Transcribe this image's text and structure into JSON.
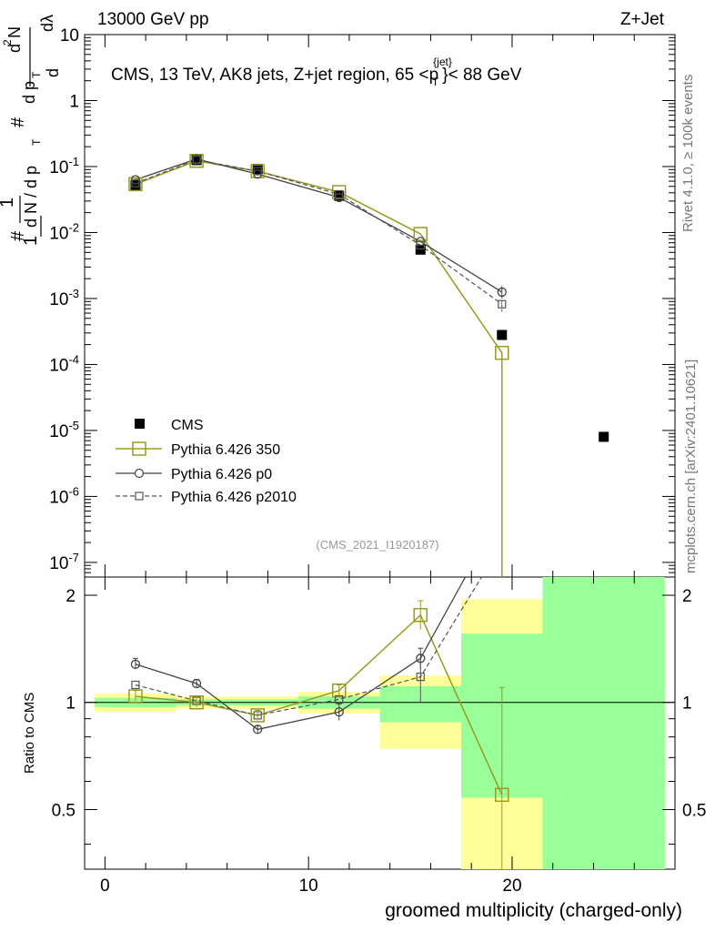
{
  "header": {
    "left": "13000 GeV pp",
    "right": "Z+Jet"
  },
  "title": "CMS, 13 TeV, AK8 jets, Z+jet region, 65 <p",
  "title_sup": "{jet}",
  "title_sub": "T",
  "title_tail": "}< 88 GeV",
  "side_labels": {
    "rivet": "Rivet 4.1.0, ≥ 100k events",
    "mcplots": "mcplots.cern.ch [arXiv:2401.10621]"
  },
  "analysis_id": "(CMS_2021_I1920187)",
  "colors": {
    "cms": "#000000",
    "p350": "#9a9a1e",
    "p0": "#444444",
    "p2010": "#555555",
    "band_yellow": "#ffff99",
    "band_green": "#99ff99"
  },
  "chart_data": [
    {
      "type": "line",
      "title": "CMS, 13 TeV, AK8 jets, Z+jet region, 65 < p_T^{jet} < 88 GeV",
      "ylabel": "1 / (dN / dp_T) # d²N / (dp_T dλ)",
      "yscale": "log",
      "ylim": [
        6e-08,
        10
      ],
      "xlim": [
        -1,
        28
      ],
      "ytick_labels": [
        "10",
        "1",
        "10-1",
        "10-2",
        "10-3",
        "10-4",
        "10-5",
        "10-6",
        "10-7"
      ],
      "legend": [
        "CMS",
        "Pythia 6.426 350",
        "Pythia 6.426 p0",
        "Pythia 6.426 p2010"
      ],
      "legend_position": "bottom-left",
      "series": [
        {
          "name": "CMS",
          "style": "marker",
          "x": [
            1.5,
            4.5,
            7.5,
            11.5,
            15.5,
            19.5,
            24.5
          ],
          "y": [
            0.052,
            0.125,
            0.092,
            0.036,
            0.0055,
            0.00028,
            8e-06
          ]
        },
        {
          "name": "Pythia 6.426 350",
          "style": "solid",
          "x": [
            1.5,
            4.5,
            7.5,
            11.5,
            15.5,
            19.5,
            19.5
          ],
          "y": [
            0.054,
            0.122,
            0.085,
            0.041,
            0.0095,
            0.00015,
            1e-09
          ]
        },
        {
          "name": "Pythia 6.426 p0",
          "style": "solid",
          "x": [
            1.5,
            4.5,
            7.5,
            11.5,
            15.5,
            19.5
          ],
          "y": [
            0.063,
            0.13,
            0.077,
            0.034,
            0.0073,
            0.00125
          ]
        },
        {
          "name": "Pythia 6.426 p2010",
          "style": "dashed",
          "x": [
            1.5,
            4.5,
            7.5,
            11.5,
            15.5,
            19.5
          ],
          "y": [
            0.056,
            0.126,
            0.085,
            0.038,
            0.0064,
            0.00082
          ]
        }
      ]
    },
    {
      "type": "line",
      "xlabel": "groomed multiplicity (charged-only)",
      "ylabel": "Ratio to CMS",
      "ylim": [
        0.34,
        2.25
      ],
      "xlim": [
        -1,
        28
      ],
      "xtick_labels": [
        "0",
        "10",
        "20"
      ],
      "ytick_labels": [
        "0.5",
        "1",
        "2"
      ],
      "bands": [
        {
          "x0": -0.5,
          "x1": 3.5,
          "yellow": [
            0.94,
            1.06
          ],
          "green": [
            0.97,
            1.03
          ]
        },
        {
          "x0": 3.5,
          "x1": 9.5,
          "yellow": [
            0.96,
            1.04
          ],
          "green": [
            0.98,
            1.02
          ]
        },
        {
          "x0": 9.5,
          "x1": 13.5,
          "yellow": [
            0.93,
            1.07
          ],
          "green": [
            0.96,
            1.04
          ]
        },
        {
          "x0": 13.5,
          "x1": 17.5,
          "yellow": [
            0.74,
            1.19
          ],
          "green": [
            0.88,
            1.11
          ]
        },
        {
          "x0": 17.5,
          "x1": 21.5,
          "yellow": [
            0.34,
            1.95
          ],
          "green": [
            0.54,
            1.56
          ]
        },
        {
          "x0": 21.5,
          "x1": 27.5,
          "yellow": [
            0.34,
            2.25
          ],
          "green": [
            0.34,
            2.25
          ]
        }
      ],
      "series": [
        {
          "name": "Pythia 6.426 350",
          "style": "solid",
          "x": [
            1.5,
            4.5,
            7.5,
            11.5,
            15.5,
            19.5
          ],
          "y": [
            1.04,
            1.0,
            0.92,
            1.08,
            1.76,
            0.55
          ]
        },
        {
          "name": "Pythia 6.426 p0",
          "style": "solid",
          "x": [
            1.5,
            4.5,
            7.5,
            11.5,
            15.5,
            17.7
          ],
          "y": [
            1.28,
            1.13,
            0.84,
            0.94,
            1.33,
            2.25
          ]
        },
        {
          "name": "Pythia 6.426 p2010",
          "style": "dashed",
          "x": [
            1.5,
            4.5,
            7.5,
            11.5,
            15.5,
            18.5
          ],
          "y": [
            1.12,
            1.01,
            0.92,
            1.02,
            1.18,
            2.25
          ]
        }
      ]
    }
  ]
}
